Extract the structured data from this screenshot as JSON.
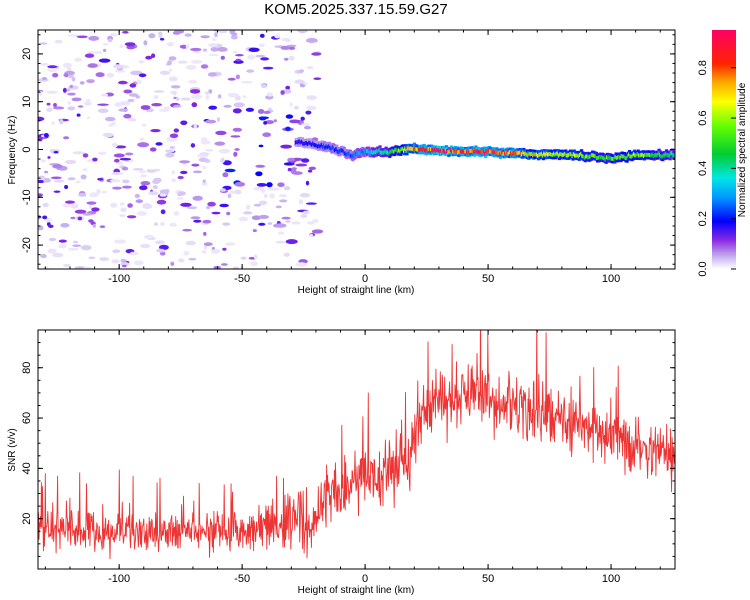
{
  "figure_title": "KOM5.2025.337.15.59.G27",
  "chart_data": [
    {
      "type": "heatmap",
      "title": "KOM5.2025.337.15.59.G27",
      "xlabel": "Height of straight line (km)",
      "ylabel": "Frequency (Hz)",
      "xlim": [
        -133,
        126
      ],
      "ylim": [
        -25,
        25
      ],
      "x_ticks": [
        -100,
        -50,
        0,
        50,
        100
      ],
      "x_tick_labels": [
        "-100",
        "-50",
        "0",
        "50",
        "100"
      ],
      "y_ticks": [
        -20,
        -10,
        0,
        10,
        20
      ],
      "y_tick_labels": [
        "-20",
        "-10",
        "0",
        "10",
        "20"
      ],
      "colorbar": {
        "label": "Normalized spectral amplitude",
        "range": [
          0,
          0.95
        ],
        "ticks": [
          0,
          0.2,
          0.4,
          0.6,
          0.8
        ],
        "tick_labels": [
          "0.0",
          "0.2",
          "0.4",
          "0.6",
          "0.8"
        ]
      },
      "ridge": {
        "description": "narrow high-amplitude band near 0 Hz",
        "x": [
          -25,
          -15,
          -5,
          0,
          10,
          20,
          30,
          40,
          50,
          60,
          70,
          80,
          90,
          100,
          110,
          120,
          126
        ],
        "frequency": [
          1.5,
          0.5,
          -1.2,
          -0.5,
          -0.5,
          0.2,
          -0.3,
          -0.4,
          -0.6,
          -0.8,
          -1.0,
          -1.0,
          -1.4,
          -1.8,
          -1.3,
          -1.2,
          -1.0
        ],
        "amplitude": [
          0.18,
          0.22,
          0.25,
          0.3,
          0.45,
          0.7,
          0.95,
          0.8,
          0.85,
          0.75,
          0.65,
          0.6,
          0.55,
          0.5,
          0.6,
          0.45,
          0.4
        ]
      },
      "noise_region": {
        "x_from": -133,
        "x_to": -25,
        "amplitude_max": 0.15
      }
    },
    {
      "type": "line",
      "xlabel": "Height of straight line (km)",
      "ylabel": "SNR (v/v)",
      "xlim": [
        -133,
        126
      ],
      "ylim": [
        0,
        95
      ],
      "x_ticks": [
        -100,
        -50,
        0,
        50,
        100
      ],
      "x_tick_labels": [
        "-100",
        "-50",
        "0",
        "50",
        "100"
      ],
      "y_ticks": [
        20,
        40,
        60,
        80
      ],
      "y_tick_labels": [
        "20",
        "40",
        "60",
        "80"
      ],
      "series": [
        {
          "name": "SNR",
          "color": "#ee3333",
          "x": [
            -133,
            -120,
            -100,
            -80,
            -60,
            -40,
            -30,
            -26,
            -22,
            -18,
            -10,
            0,
            10,
            18,
            22,
            28,
            35,
            45,
            55,
            65,
            75,
            85,
            95,
            105,
            115,
            126
          ],
          "mean": [
            15,
            15,
            15,
            15,
            15,
            16,
            18,
            24,
            15,
            26,
            33,
            38,
            40,
            42,
            58,
            66,
            68,
            68,
            65,
            63,
            62,
            58,
            56,
            52,
            47,
            43
          ],
          "spread": [
            7,
            7,
            7,
            7,
            7,
            8,
            9,
            15,
            7,
            11,
            11,
            11,
            12,
            12,
            11,
            11,
            11,
            10,
            10,
            10,
            11,
            10,
            10,
            9,
            9,
            9
          ]
        }
      ]
    }
  ]
}
